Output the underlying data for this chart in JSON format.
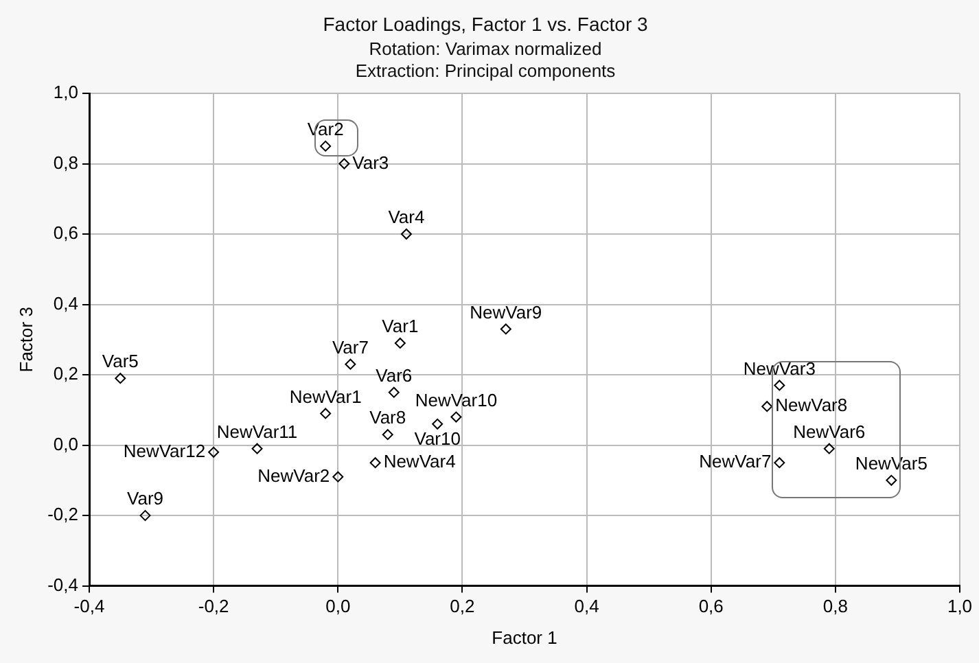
{
  "chart_data": {
    "type": "scatter",
    "title": "Factor Loadings, Factor 1 vs. Factor 3",
    "subtitle": "Rotation: Varimax normalized\nExtraction: Principal components",
    "xlabel": "Factor 1",
    "ylabel": "Factor 3",
    "xlim": [
      -0.4,
      1.0
    ],
    "ylim": [
      -0.4,
      1.0
    ],
    "xticks": [
      {
        "value": -0.4,
        "label": "-0,4"
      },
      {
        "value": -0.2,
        "label": "-0,2"
      },
      {
        "value": 0,
        "label": "0,0"
      },
      {
        "value": 0.2,
        "label": "0,2"
      },
      {
        "value": 0.4,
        "label": "0,4"
      },
      {
        "value": 0.6,
        "label": "0,6"
      },
      {
        "value": 0.8,
        "label": "0,8"
      },
      {
        "value": 1.0,
        "label": "1,0"
      }
    ],
    "yticks": [
      {
        "value": -0.4,
        "label": "-0,4"
      },
      {
        "value": -0.2,
        "label": "-0,2"
      },
      {
        "value": 0,
        "label": "0,0"
      },
      {
        "value": 0.2,
        "label": "0,2"
      },
      {
        "value": 0.4,
        "label": "0,4"
      },
      {
        "value": 0.6,
        "label": "0,6"
      },
      {
        "value": 0.8,
        "label": "0,8"
      },
      {
        "value": 1.0,
        "label": "1,0"
      }
    ],
    "grid": true,
    "legend": false,
    "marker": "diamond",
    "series": [
      {
        "name": "Var1",
        "color": "#000000",
        "x": [
          0.1
        ],
        "values": [
          0.29
        ]
      },
      {
        "name": "Var2",
        "color": "#000000",
        "x": [
          -0.02
        ],
        "values": [
          0.85
        ]
      },
      {
        "name": "Var3",
        "color": "#000000",
        "x": [
          0.01
        ],
        "values": [
          0.8
        ]
      },
      {
        "name": "Var4",
        "color": "#000000",
        "x": [
          0.11
        ],
        "values": [
          0.6
        ]
      },
      {
        "name": "Var5",
        "color": "#000000",
        "x": [
          -0.35
        ],
        "values": [
          0.19
        ]
      },
      {
        "name": "Var6",
        "color": "#000000",
        "x": [
          0.09
        ],
        "values": [
          0.15
        ]
      },
      {
        "name": "Var7",
        "color": "#000000",
        "x": [
          0.02
        ],
        "values": [
          0.23
        ]
      },
      {
        "name": "Var8",
        "color": "#000000",
        "x": [
          0.08
        ],
        "values": [
          0.03
        ]
      },
      {
        "name": "Var9",
        "color": "#000000",
        "x": [
          -0.31
        ],
        "values": [
          -0.2
        ]
      },
      {
        "name": "Var10",
        "color": "#000000",
        "x": [
          0.16
        ],
        "values": [
          0.06
        ]
      },
      {
        "name": "NewVar1",
        "color": "#000000",
        "x": [
          -0.02
        ],
        "values": [
          0.09
        ]
      },
      {
        "name": "NewVar2",
        "color": "#000000",
        "x": [
          0.0
        ],
        "values": [
          -0.09
        ]
      },
      {
        "name": "NewVar3",
        "color": "#000000",
        "x": [
          0.71
        ],
        "values": [
          0.17
        ]
      },
      {
        "name": "NewVar4",
        "color": "#000000",
        "x": [
          0.06
        ],
        "values": [
          -0.05
        ]
      },
      {
        "name": "NewVar5",
        "color": "#000000",
        "x": [
          0.89
        ],
        "values": [
          -0.1
        ]
      },
      {
        "name": "NewVar6",
        "color": "#000000",
        "x": [
          0.79
        ],
        "values": [
          -0.01
        ]
      },
      {
        "name": "NewVar7",
        "color": "#000000",
        "x": [
          0.71
        ],
        "values": [
          -0.05
        ]
      },
      {
        "name": "NewVar8",
        "color": "#000000",
        "x": [
          0.69
        ],
        "values": [
          0.11
        ]
      },
      {
        "name": "NewVar9",
        "color": "#000000",
        "x": [
          0.27
        ],
        "values": [
          0.33
        ]
      },
      {
        "name": "NewVar10",
        "color": "#000000",
        "x": [
          0.19
        ],
        "values": [
          0.08
        ]
      },
      {
        "name": "NewVar11",
        "color": "#000000",
        "x": [
          -0.13
        ],
        "values": [
          -0.01
        ]
      },
      {
        "name": "NewVar12",
        "color": "#000000",
        "x": [
          -0.2
        ],
        "values": [
          -0.02
        ]
      }
    ]
  }
}
